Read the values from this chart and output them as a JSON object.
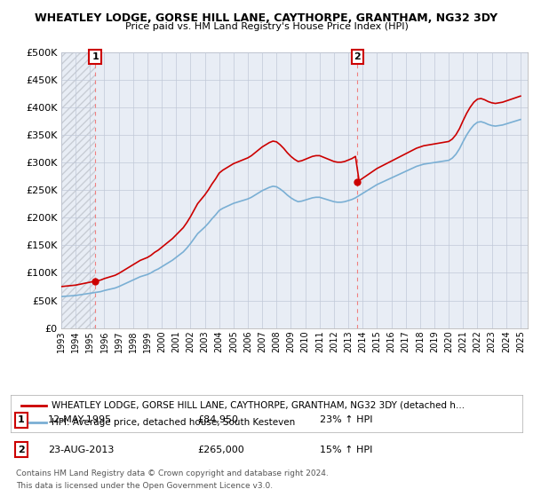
{
  "title": "WHEATLEY LODGE, GORSE HILL LANE, CAYTHORPE, GRANTHAM, NG32 3DY",
  "subtitle": "Price paid vs. HM Land Registry's House Price Index (HPI)",
  "ylim": [
    0,
    500000
  ],
  "yticks": [
    0,
    50000,
    100000,
    150000,
    200000,
    250000,
    300000,
    350000,
    400000,
    450000,
    500000
  ],
  "ytick_labels": [
    "£0",
    "£50K",
    "£100K",
    "£150K",
    "£200K",
    "£250K",
    "£300K",
    "£350K",
    "£400K",
    "£450K",
    "£500K"
  ],
  "xlim_start": 1993.0,
  "xlim_end": 2025.5,
  "sale1_x": 1995.36,
  "sale1_y": 84950,
  "sale1_label": "1",
  "sale2_x": 2013.64,
  "sale2_y": 265000,
  "sale2_label": "2",
  "legend_line1": "WHEATLEY LODGE, GORSE HILL LANE, CAYTHORPE, GRANTHAM, NG32 3DY (detached h…",
  "legend_line2": "HPI: Average price, detached house, South Kesteven",
  "table_row1": [
    "1",
    "12-MAY-1995",
    "£84,950",
    "23% ↑ HPI"
  ],
  "table_row2": [
    "2",
    "23-AUG-2013",
    "£265,000",
    "15% ↑ HPI"
  ],
  "footer1": "Contains HM Land Registry data © Crown copyright and database right 2024.",
  "footer2": "This data is licensed under the Open Government Licence v3.0.",
  "red_color": "#cc0000",
  "blue_color": "#7aafd4",
  "plot_bg": "#e8edf5",
  "hatch_color": "#c8cdd5",
  "grid_color": "#c0c8d8",
  "years_hpi": [
    1993.0,
    1993.25,
    1993.5,
    1993.75,
    1994.0,
    1994.25,
    1994.5,
    1994.75,
    1995.0,
    1995.25,
    1995.5,
    1995.75,
    1996.0,
    1996.25,
    1996.5,
    1996.75,
    1997.0,
    1997.25,
    1997.5,
    1997.75,
    1998.0,
    1998.25,
    1998.5,
    1998.75,
    1999.0,
    1999.25,
    1999.5,
    1999.75,
    2000.0,
    2000.25,
    2000.5,
    2000.75,
    2001.0,
    2001.25,
    2001.5,
    2001.75,
    2002.0,
    2002.25,
    2002.5,
    2002.75,
    2003.0,
    2003.25,
    2003.5,
    2003.75,
    2004.0,
    2004.25,
    2004.5,
    2004.75,
    2005.0,
    2005.25,
    2005.5,
    2005.75,
    2006.0,
    2006.25,
    2006.5,
    2006.75,
    2007.0,
    2007.25,
    2007.5,
    2007.75,
    2008.0,
    2008.25,
    2008.5,
    2008.75,
    2009.0,
    2009.25,
    2009.5,
    2009.75,
    2010.0,
    2010.25,
    2010.5,
    2010.75,
    2011.0,
    2011.25,
    2011.5,
    2011.75,
    2012.0,
    2012.25,
    2012.5,
    2012.75,
    2013.0,
    2013.25,
    2013.5,
    2013.75,
    2014.0,
    2014.25,
    2014.5,
    2014.75,
    2015.0,
    2015.25,
    2015.5,
    2015.75,
    2016.0,
    2016.25,
    2016.5,
    2016.75,
    2017.0,
    2017.25,
    2017.5,
    2017.75,
    2018.0,
    2018.25,
    2018.5,
    2018.75,
    2019.0,
    2019.25,
    2019.5,
    2019.75,
    2020.0,
    2020.25,
    2020.5,
    2020.75,
    2021.0,
    2021.25,
    2021.5,
    2021.75,
    2022.0,
    2022.25,
    2022.5,
    2022.75,
    2023.0,
    2023.25,
    2023.5,
    2023.75,
    2024.0,
    2024.25,
    2024.5,
    2024.75,
    2025.0
  ],
  "hpi_vals": [
    57000,
    57500,
    58000,
    58500,
    59000,
    60000,
    61000,
    62000,
    63000,
    64000,
    65000,
    66000,
    68000,
    69500,
    71000,
    72500,
    75000,
    78000,
    81000,
    84000,
    87000,
    90000,
    93000,
    95000,
    97000,
    100000,
    104000,
    107000,
    111000,
    115000,
    119000,
    123000,
    128000,
    133000,
    138000,
    145000,
    153000,
    162000,
    171000,
    177000,
    183000,
    190000,
    198000,
    205000,
    213000,
    217000,
    220000,
    223000,
    226000,
    228000,
    230000,
    232000,
    234000,
    237000,
    241000,
    245000,
    249000,
    252000,
    255000,
    257000,
    256000,
    252000,
    247000,
    241000,
    236000,
    232000,
    229000,
    230000,
    232000,
    234000,
    236000,
    237000,
    237000,
    235000,
    233000,
    231000,
    229000,
    228000,
    228000,
    229000,
    231000,
    233000,
    236000,
    240000,
    244000,
    248000,
    252000,
    256000,
    260000,
    263000,
    266000,
    269000,
    272000,
    275000,
    278000,
    281000,
    284000,
    287000,
    290000,
    293000,
    295000,
    297000,
    298000,
    299000,
    300000,
    301000,
    302000,
    303000,
    304000,
    308000,
    315000,
    325000,
    338000,
    350000,
    360000,
    368000,
    373000,
    374000,
    372000,
    369000,
    367000,
    366000,
    367000,
    368000,
    370000,
    372000,
    374000,
    376000,
    378000
  ]
}
